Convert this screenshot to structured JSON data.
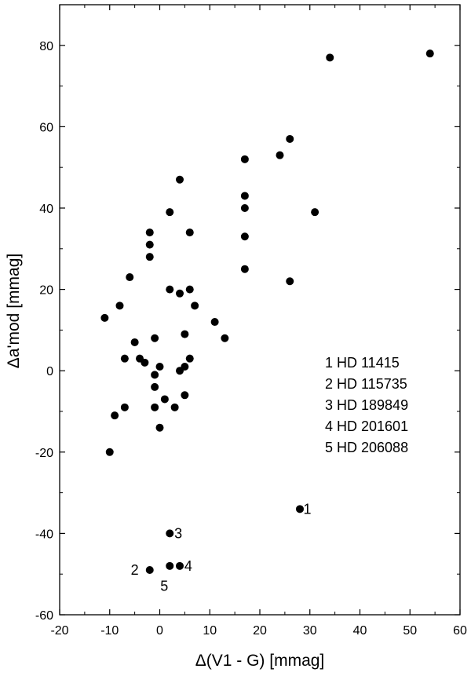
{
  "chart_data": {
    "type": "scatter",
    "xlabel": "Δ(V1 - G) [mmag]",
    "ylabel": "Δa'mod [mmag]",
    "xlim": [
      -20,
      60
    ],
    "ylim": [
      -60,
      90
    ],
    "xticks": [
      -20,
      -10,
      0,
      10,
      20,
      30,
      40,
      50,
      60
    ],
    "yticks": [
      -60,
      -40,
      -20,
      0,
      20,
      40,
      60,
      80
    ],
    "grid": false,
    "legend_placement": "right-middle",
    "marker_color": "#000000",
    "legend": [
      "1  HD 11415",
      "2  HD 115735",
      "3  HD 189849",
      "4  HD 201601",
      "5  HD 206088"
    ],
    "annotations": [
      {
        "text": "1",
        "x": 29.5,
        "y": -34
      },
      {
        "text": "3",
        "x": 3.7,
        "y": -40
      },
      {
        "text": "2",
        "x": -5,
        "y": -49
      },
      {
        "text": "4",
        "x": 5.7,
        "y": -48
      },
      {
        "text": "5",
        "x": 0.9,
        "y": -53
      }
    ],
    "points": [
      {
        "x": 54,
        "y": 78
      },
      {
        "x": 34,
        "y": 77
      },
      {
        "x": 26,
        "y": 57
      },
      {
        "x": 24,
        "y": 53
      },
      {
        "x": 17,
        "y": 52
      },
      {
        "x": 17,
        "y": 43
      },
      {
        "x": 17,
        "y": 40
      },
      {
        "x": 31,
        "y": 39
      },
      {
        "x": 17,
        "y": 33
      },
      {
        "x": 17,
        "y": 25
      },
      {
        "x": 26,
        "y": 22
      },
      {
        "x": 4,
        "y": 47
      },
      {
        "x": 2,
        "y": 39
      },
      {
        "x": -2,
        "y": 34
      },
      {
        "x": 6,
        "y": 34
      },
      {
        "x": -2,
        "y": 31
      },
      {
        "x": -2,
        "y": 28
      },
      {
        "x": -6,
        "y": 23
      },
      {
        "x": 2,
        "y": 20
      },
      {
        "x": 6,
        "y": 20
      },
      {
        "x": 4,
        "y": 19
      },
      {
        "x": -8,
        "y": 16
      },
      {
        "x": 7,
        "y": 16
      },
      {
        "x": -11,
        "y": 13
      },
      {
        "x": 11,
        "y": 12
      },
      {
        "x": 5,
        "y": 9
      },
      {
        "x": -1,
        "y": 8
      },
      {
        "x": 13,
        "y": 8
      },
      {
        "x": -5,
        "y": 7
      },
      {
        "x": -7,
        "y": 3
      },
      {
        "x": -4,
        "y": 3
      },
      {
        "x": -3,
        "y": 2
      },
      {
        "x": 6,
        "y": 3
      },
      {
        "x": 0,
        "y": 1
      },
      {
        "x": 5,
        "y": 1
      },
      {
        "x": 4,
        "y": 0
      },
      {
        "x": -1,
        "y": -1
      },
      {
        "x": -1,
        "y": -4
      },
      {
        "x": 5,
        "y": -6
      },
      {
        "x": 1,
        "y": -7
      },
      {
        "x": -7,
        "y": -9
      },
      {
        "x": -1,
        "y": -9
      },
      {
        "x": 3,
        "y": -9
      },
      {
        "x": -9,
        "y": -11
      },
      {
        "x": 0,
        "y": -14
      },
      {
        "x": -10,
        "y": -20
      },
      {
        "x": 28,
        "y": -34
      },
      {
        "x": 2,
        "y": -40
      },
      {
        "x": -2,
        "y": -49
      },
      {
        "x": 2,
        "y": -48
      },
      {
        "x": 4,
        "y": -48
      }
    ]
  }
}
